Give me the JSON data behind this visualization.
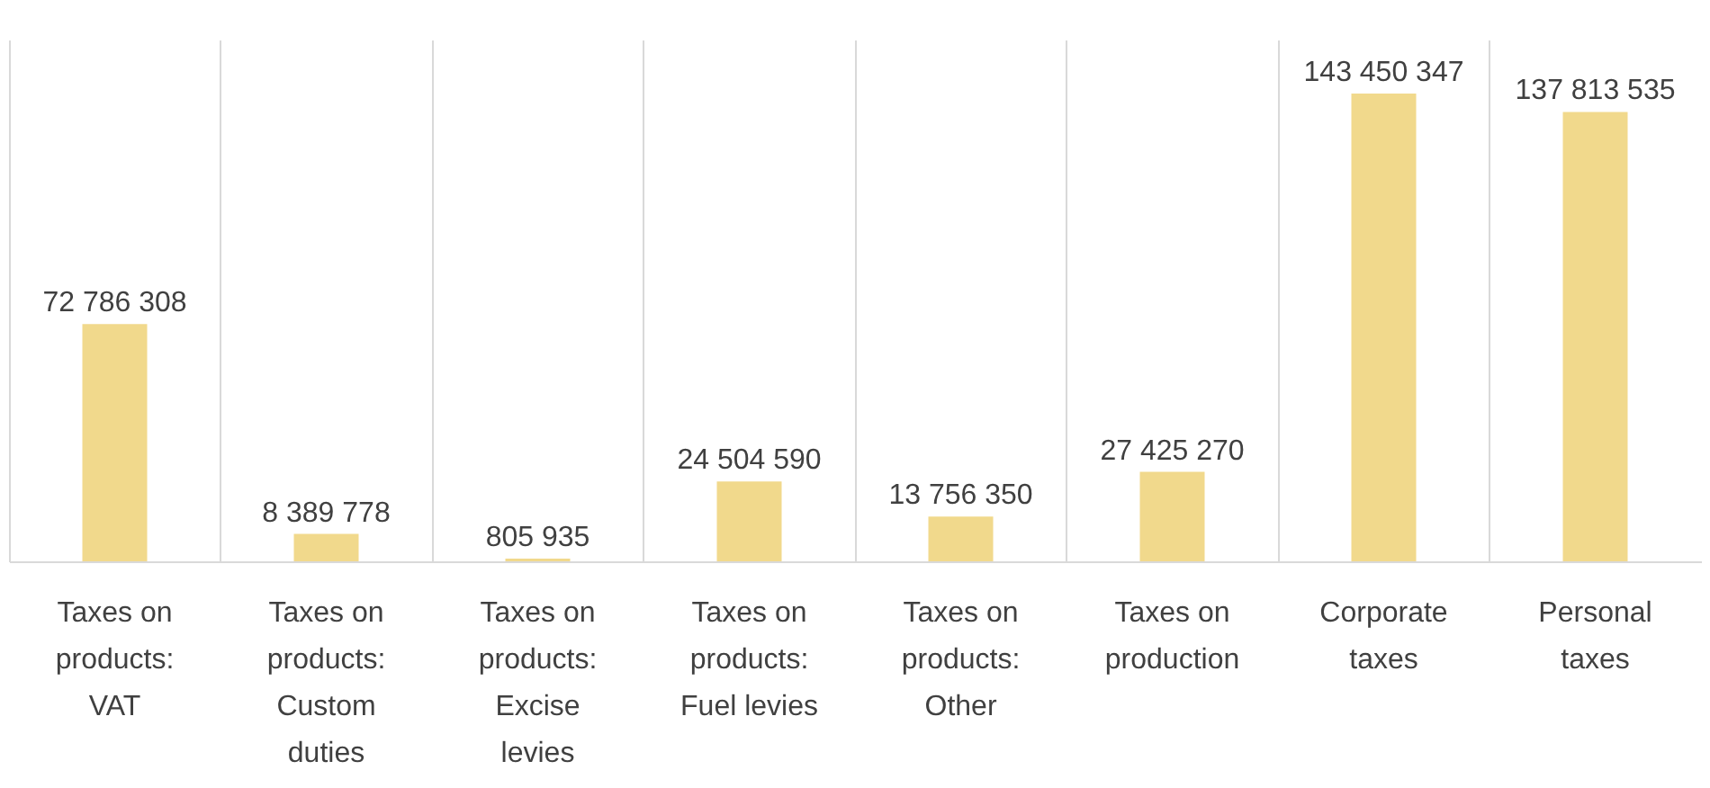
{
  "chart_data": {
    "type": "bar",
    "categories": [
      "Taxes on products: VAT",
      "Taxes on products: Custom duties",
      "Taxes on products: Excise levies",
      "Taxes on products: Fuel levies",
      "Taxes on products: Other",
      "Taxes on production",
      "Corporate taxes",
      "Personal taxes"
    ],
    "values": [
      72786308,
      8389778,
      805935,
      24504590,
      13756350,
      27425270,
      143450347,
      137813535
    ],
    "color": "#f1d98c",
    "data_labels": true,
    "grid": "x",
    "tick_labels": "x"
  }
}
